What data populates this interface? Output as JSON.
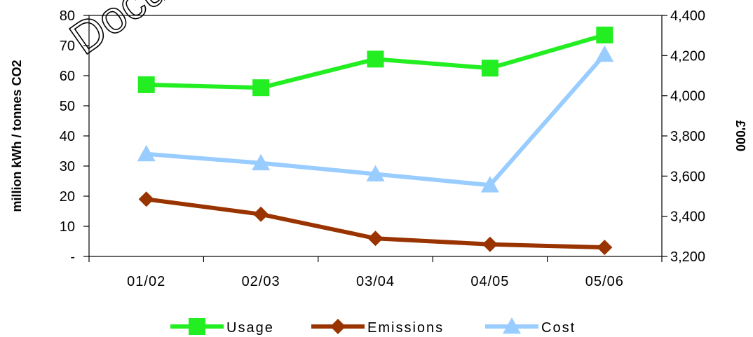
{
  "watermark": "Document",
  "chart_data": {
    "type": "line",
    "categories": [
      "01/02",
      "02/03",
      "03/04",
      "04/05",
      "05/06"
    ],
    "y_left": {
      "label": "million kWh / tonnes CO2",
      "ylim": [
        0,
        80
      ],
      "ticks": [
        0,
        10,
        20,
        30,
        40,
        50,
        60,
        70,
        80
      ],
      "tick_labels": [
        "-",
        "10",
        "20",
        "30",
        "40",
        "50",
        "60",
        "70",
        "80"
      ]
    },
    "y_right": {
      "label": "£'000",
      "ylim": [
        3200,
        4400
      ],
      "ticks": [
        3200,
        3400,
        3600,
        3800,
        4000,
        4200,
        4400
      ],
      "tick_labels": [
        "3,200",
        "3,400",
        "3,600",
        "3,800",
        "4,000",
        "4,200",
        "4,400"
      ]
    },
    "series": [
      {
        "name": "Usage",
        "axis": "left",
        "values": [
          57,
          56,
          65.5,
          62.5,
          73.5
        ],
        "color": "#22ee22",
        "marker": "square"
      },
      {
        "name": "Emissions",
        "axis": "left",
        "values": [
          19,
          14,
          6,
          4,
          3
        ],
        "color": "#993300",
        "marker": "diamond"
      },
      {
        "name": "Cost",
        "axis": "right",
        "values": [
          3710,
          3665,
          3610,
          3555,
          4205
        ],
        "color": "#99ccff",
        "marker": "triangle"
      }
    ],
    "grid": false,
    "legend_position": "bottom"
  }
}
